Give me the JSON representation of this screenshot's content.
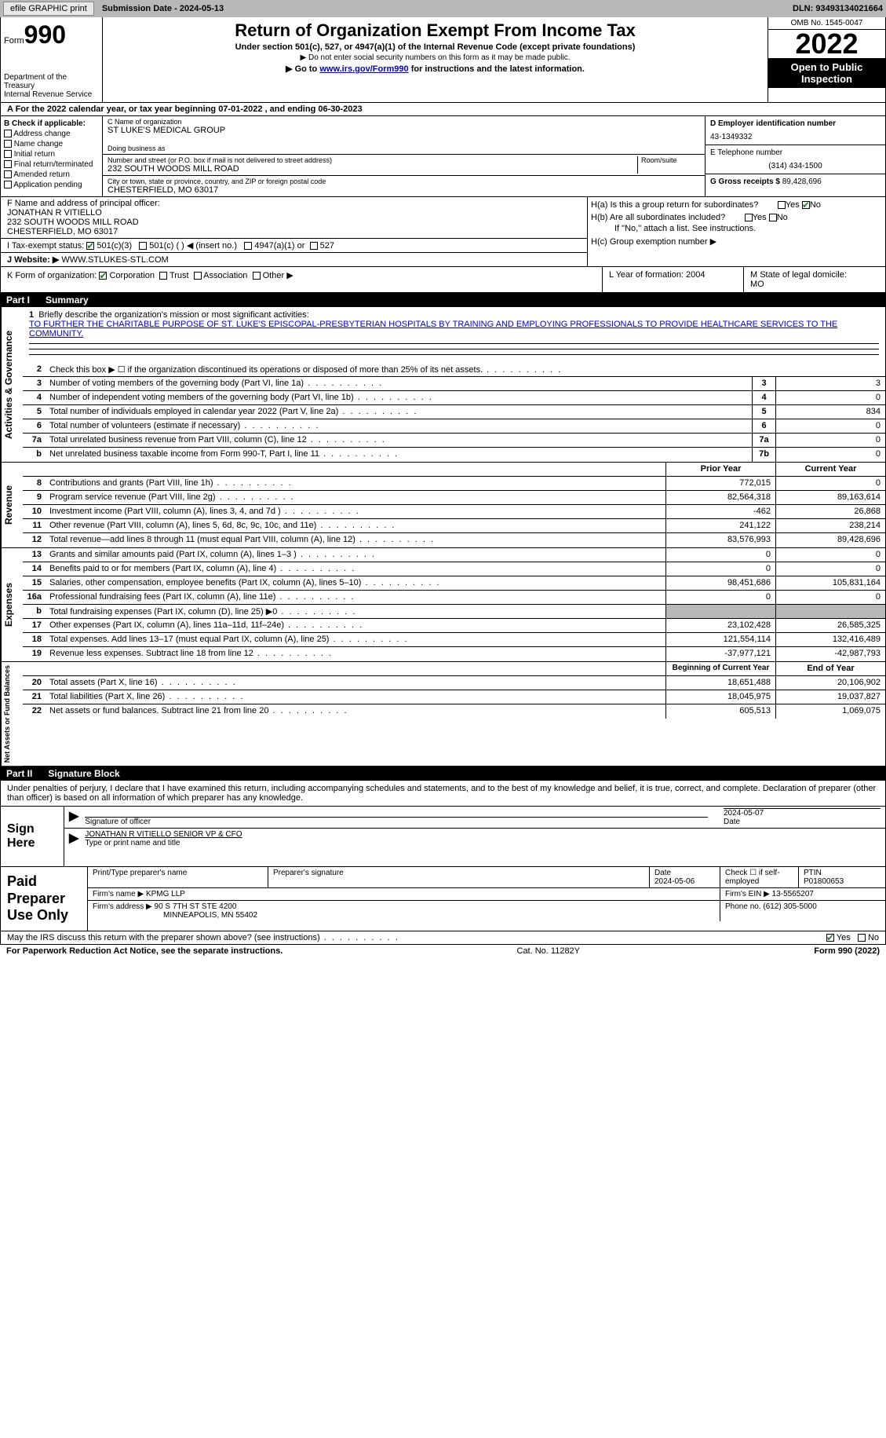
{
  "topbar": {
    "efile": "efile GRAPHIC print",
    "sub_label": "Submission Date - ",
    "sub_date": "2024-05-13",
    "dln_label": "DLN: ",
    "dln": "93493134021664"
  },
  "header": {
    "form_small": "Form",
    "form_big": "990",
    "dept": "Department of the Treasury\nInternal Revenue Service",
    "title": "Return of Organization Exempt From Income Tax",
    "sub1": "Under section 501(c), 527, or 4947(a)(1) of the Internal Revenue Code (except private foundations)",
    "sub2": "▶ Do not enter social security numbers on this form as it may be made public.",
    "sub3_pre": "▶ Go to ",
    "sub3_link": "www.irs.gov/Form990",
    "sub3_post": " for instructions and the latest information.",
    "omb": "OMB No. 1545-0047",
    "year": "2022",
    "otp": "Open to Public Inspection"
  },
  "row_a": "A For the 2022 calendar year, or tax year beginning 07-01-2022    , and ending 06-30-2023",
  "col_b": {
    "title": "B Check if applicable:",
    "items": [
      "Address change",
      "Name change",
      "Initial return",
      "Final return/terminated",
      "Amended return",
      "Application pending"
    ]
  },
  "col_c": {
    "name_label": "C Name of organization",
    "name": "ST LUKE'S MEDICAL GROUP",
    "dba_label": "Doing business as",
    "dba": "",
    "addr_label": "Number and street (or P.O. box if mail is not delivered to street address)",
    "room_label": "Room/suite",
    "addr": "232 SOUTH WOODS MILL ROAD",
    "city_label": "City or town, state or province, country, and ZIP or foreign postal code",
    "city": "CHESTERFIELD, MO  63017"
  },
  "col_d": {
    "ein_label": "D Employer identification number",
    "ein": "43-1349332",
    "tel_label": "E Telephone number",
    "tel": "(314) 434-1500",
    "gross_label": "G Gross receipts $ ",
    "gross": "89,428,696"
  },
  "f": {
    "label": "F Name and address of principal officer:",
    "name": "JONATHAN R VITIELLO",
    "addr1": "232 SOUTH WOODS MILL ROAD",
    "addr2": "CHESTERFIELD, MO  63017"
  },
  "h": {
    "a": "H(a)  Is this a group return for subordinates?",
    "b": "H(b)  Are all subordinates included?",
    "b_note": "If \"No,\" attach a list. See instructions.",
    "c": "H(c)  Group exemption number ▶",
    "yes": "Yes",
    "no": "No"
  },
  "i": {
    "label": "I    Tax-exempt status:",
    "o1": "501(c)(3)",
    "o2": "501(c) (  ) ◀ (insert no.)",
    "o3": "4947(a)(1) or",
    "o4": "527"
  },
  "j": {
    "label": "J    Website: ▶ ",
    "val": "WWW.STLUKES-STL.COM"
  },
  "k": {
    "label": "K Form of organization:",
    "o1": "Corporation",
    "o2": "Trust",
    "o3": "Association",
    "o4": "Other ▶",
    "l_label": "L Year of formation: ",
    "l_val": "2004",
    "m_label": "M State of legal domicile:",
    "m_val": "MO"
  },
  "part1": {
    "num": "Part I",
    "title": "Summary"
  },
  "mission": {
    "num": "1",
    "label": "Briefly describe the organization's mission or most significant activities:",
    "text": "TO FURTHER THE CHARITABLE PURPOSE OF ST. LUKE'S EPISCOPAL-PRESBYTERIAN HOSPITALS BY TRAINING AND EMPLOYING PROFESSIONALS TO PROVIDE HEALTHCARE SERVICES TO THE COMMUNITY."
  },
  "gov_lines": [
    {
      "n": "2",
      "t": "Check this box ▶ ☐ if the organization discontinued its operations or disposed of more than 25% of its net assets.",
      "box": "",
      "v": ""
    },
    {
      "n": "3",
      "t": "Number of voting members of the governing body (Part VI, line 1a)",
      "box": "3",
      "v": "3"
    },
    {
      "n": "4",
      "t": "Number of independent voting members of the governing body (Part VI, line 1b)",
      "box": "4",
      "v": "0"
    },
    {
      "n": "5",
      "t": "Total number of individuals employed in calendar year 2022 (Part V, line 2a)",
      "box": "5",
      "v": "834"
    },
    {
      "n": "6",
      "t": "Total number of volunteers (estimate if necessary)",
      "box": "6",
      "v": "0"
    },
    {
      "n": "7a",
      "t": "Total unrelated business revenue from Part VIII, column (C), line 12",
      "box": "7a",
      "v": "0"
    },
    {
      "n": "b",
      "t": "Net unrelated business taxable income from Form 990-T, Part I, line 11",
      "box": "7b",
      "v": "0"
    }
  ],
  "prior_label": "Prior Year",
  "current_label": "Current Year",
  "rev_lines": [
    {
      "n": "8",
      "t": "Contributions and grants (Part VIII, line 1h)",
      "p": "772,015",
      "c": "0"
    },
    {
      "n": "9",
      "t": "Program service revenue (Part VIII, line 2g)",
      "p": "82,564,318",
      "c": "89,163,614"
    },
    {
      "n": "10",
      "t": "Investment income (Part VIII, column (A), lines 3, 4, and 7d )",
      "p": "-462",
      "c": "26,868"
    },
    {
      "n": "11",
      "t": "Other revenue (Part VIII, column (A), lines 5, 6d, 8c, 9c, 10c, and 11e)",
      "p": "241,122",
      "c": "238,214"
    },
    {
      "n": "12",
      "t": "Total revenue—add lines 8 through 11 (must equal Part VIII, column (A), line 12)",
      "p": "83,576,993",
      "c": "89,428,696"
    }
  ],
  "exp_lines": [
    {
      "n": "13",
      "t": "Grants and similar amounts paid (Part IX, column (A), lines 1–3 )",
      "p": "0",
      "c": "0"
    },
    {
      "n": "14",
      "t": "Benefits paid to or for members (Part IX, column (A), line 4)",
      "p": "0",
      "c": "0"
    },
    {
      "n": "15",
      "t": "Salaries, other compensation, employee benefits (Part IX, column (A), lines 5–10)",
      "p": "98,451,686",
      "c": "105,831,164"
    },
    {
      "n": "16a",
      "t": "Professional fundraising fees (Part IX, column (A), line 11e)",
      "p": "0",
      "c": "0"
    },
    {
      "n": "b",
      "t": "Total fundraising expenses (Part IX, column (D), line 25) ▶0",
      "p": "grey",
      "c": "grey"
    },
    {
      "n": "17",
      "t": "Other expenses (Part IX, column (A), lines 11a–11d, 11f–24e)",
      "p": "23,102,428",
      "c": "26,585,325"
    },
    {
      "n": "18",
      "t": "Total expenses. Add lines 13–17 (must equal Part IX, column (A), line 25)",
      "p": "121,554,114",
      "c": "132,416,489"
    },
    {
      "n": "19",
      "t": "Revenue less expenses. Subtract line 18 from line 12",
      "p": "-37,977,121",
      "c": "-42,987,793"
    }
  ],
  "begin_label": "Beginning of Current Year",
  "end_label": "End of Year",
  "na_lines": [
    {
      "n": "20",
      "t": "Total assets (Part X, line 16)",
      "p": "18,651,488",
      "c": "20,106,902"
    },
    {
      "n": "21",
      "t": "Total liabilities (Part X, line 26)",
      "p": "18,045,975",
      "c": "19,037,827"
    },
    {
      "n": "22",
      "t": "Net assets or fund balances. Subtract line 21 from line 20",
      "p": "605,513",
      "c": "1,069,075"
    }
  ],
  "part2": {
    "num": "Part II",
    "title": "Signature Block"
  },
  "sig_intro": "Under penalties of perjury, I declare that I have examined this return, including accompanying schedules and statements, and to the best of my knowledge and belief, it is true, correct, and complete. Declaration of preparer (other than officer) is based on all information of which preparer has any knowledge.",
  "sign": {
    "label": "Sign Here",
    "sig_of": "Signature of officer",
    "date": "2024-05-07",
    "date_label": "Date",
    "name": "JONATHAN R VITIELLO  SENIOR VP & CFO",
    "name_label": "Type or print name and title"
  },
  "prep": {
    "label": "Paid Preparer Use Only",
    "h1": "Print/Type preparer's name",
    "h2": "Preparer's signature",
    "h3": "Date",
    "h3v": "2024-05-06",
    "h4": "Check ☐ if self-employed",
    "h5": "PTIN",
    "h5v": "P01800653",
    "firm_label": "Firm's name    ▶ ",
    "firm": "KPMG LLP",
    "ein_label": "Firm's EIN ▶ ",
    "ein": "13-5565207",
    "addr_label": "Firm's address ▶ ",
    "addr": "90 S 7TH ST STE 4200",
    "city": "MINNEAPOLIS, MN  55402",
    "phone_label": "Phone no. ",
    "phone": "(612) 305-5000"
  },
  "discuss": {
    "text": "May the IRS discuss this return with the preparer shown above? (see instructions)",
    "yes": "Yes",
    "no": "No"
  },
  "footer": {
    "l": "For Paperwork Reduction Act Notice, see the separate instructions.",
    "c": "Cat. No. 11282Y",
    "r": "Form 990 (2022)"
  },
  "side": {
    "gov": "Activities & Governance",
    "rev": "Revenue",
    "exp": "Expenses",
    "na": "Net Assets or Fund Balances"
  }
}
